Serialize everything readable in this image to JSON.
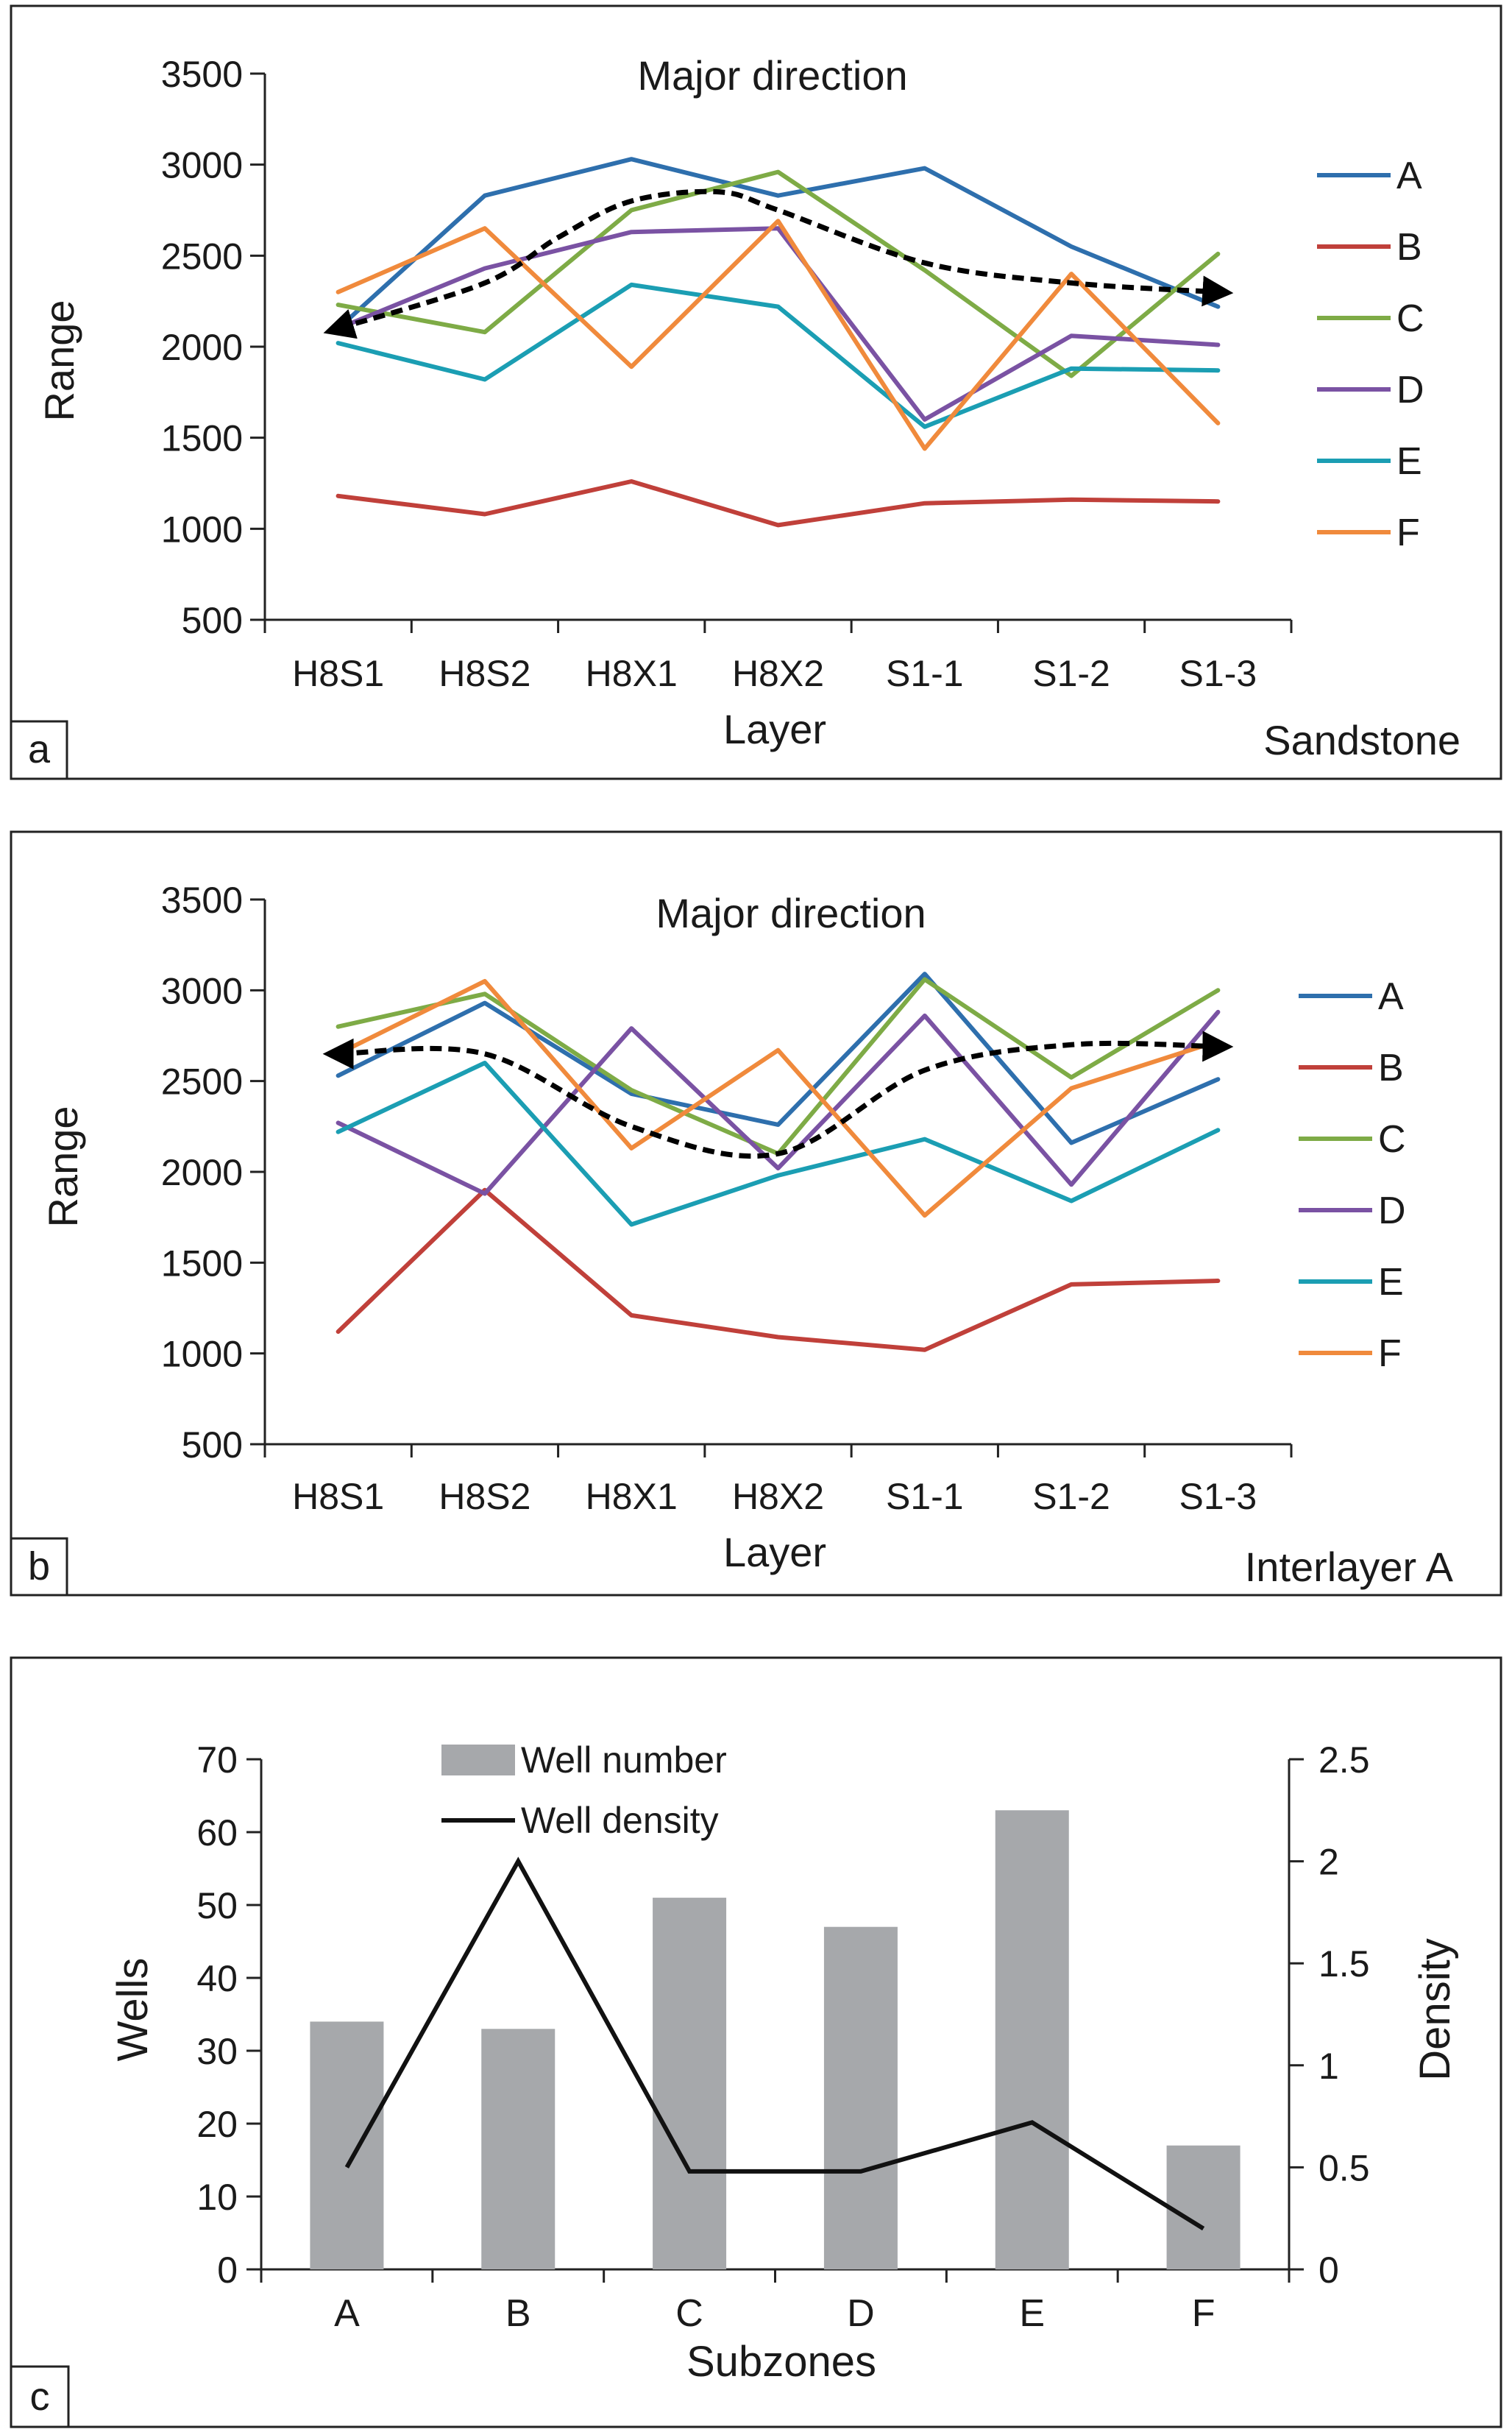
{
  "chart_data": [
    {
      "panel": "a",
      "type": "line",
      "title": "Major direction",
      "xlabel": "Layer",
      "ylabel": "Range",
      "corner_label": "Sandstone",
      "categories": [
        "H8S1",
        "H8S2",
        "H8X1",
        "H8X2",
        "S1-1",
        "S1-2",
        "S1-3"
      ],
      "ylim": [
        500,
        3500
      ],
      "yticks": [
        500,
        1000,
        1500,
        2000,
        2500,
        3000,
        3500
      ],
      "series": [
        {
          "name": "A",
          "color": "#2e6fad",
          "values": [
            2100,
            2830,
            3030,
            2830,
            2980,
            2550,
            2220
          ]
        },
        {
          "name": "B",
          "color": "#c0403a",
          "values": [
            1180,
            1080,
            1260,
            1020,
            1140,
            1160,
            1150
          ]
        },
        {
          "name": "C",
          "color": "#7eab46",
          "values": [
            2230,
            2080,
            2750,
            2960,
            2420,
            1840,
            2510
          ]
        },
        {
          "name": "D",
          "color": "#7a52a3",
          "values": [
            2100,
            2430,
            2630,
            2650,
            1600,
            2060,
            2010
          ]
        },
        {
          "name": "E",
          "color": "#1b9eb3",
          "values": [
            2020,
            1820,
            2340,
            2220,
            1560,
            1880,
            1870
          ]
        },
        {
          "name": "F",
          "color": "#f08a3c",
          "values": [
            2300,
            2650,
            1890,
            2690,
            1440,
            2400,
            1580
          ]
        }
      ],
      "trend": {
        "x": [
          0,
          1,
          1.5,
          2,
          2.6,
          3,
          4,
          5,
          6
        ],
        "y": [
          2100,
          2350,
          2600,
          2800,
          2850,
          2750,
          2460,
          2350,
          2300
        ]
      }
    },
    {
      "panel": "b",
      "type": "line",
      "title": "Major direction",
      "xlabel": "Layer",
      "ylabel": "Range",
      "corner_label": "Interlayer A",
      "categories": [
        "H8S1",
        "H8S2",
        "H8X1",
        "H8X2",
        "S1-1",
        "S1-2",
        "S1-3"
      ],
      "ylim": [
        500,
        3500
      ],
      "yticks": [
        500,
        1000,
        1500,
        2000,
        2500,
        3000,
        3500
      ],
      "series": [
        {
          "name": "A",
          "color": "#2e6fad",
          "values": [
            2530,
            2930,
            2430,
            2260,
            3090,
            2160,
            2510
          ]
        },
        {
          "name": "B",
          "color": "#c0403a",
          "values": [
            1120,
            1900,
            1210,
            1090,
            1020,
            1380,
            1400
          ]
        },
        {
          "name": "C",
          "color": "#7eab46",
          "values": [
            2800,
            2980,
            2450,
            2100,
            3060,
            2520,
            3000
          ]
        },
        {
          "name": "D",
          "color": "#7a52a3",
          "values": [
            2270,
            1880,
            2790,
            2020,
            2860,
            1930,
            2880
          ]
        },
        {
          "name": "E",
          "color": "#1b9eb3",
          "values": [
            2220,
            2600,
            1710,
            1980,
            2180,
            1840,
            2230
          ]
        },
        {
          "name": "F",
          "color": "#f08a3c",
          "values": [
            2650,
            3050,
            2130,
            2670,
            1760,
            2460,
            2720
          ]
        }
      ],
      "trend": {
        "x": [
          0,
          1,
          2,
          3,
          4,
          5,
          6
        ],
        "y": [
          2650,
          2650,
          2250,
          2100,
          2560,
          2700,
          2690
        ]
      }
    },
    {
      "panel": "c",
      "type": "bar",
      "xlabel": "Subzones",
      "ylabel": "Wells",
      "y2label": "Density",
      "categories": [
        "A",
        "B",
        "C",
        "D",
        "E",
        "F"
      ],
      "ylim": [
        0,
        70
      ],
      "yticks": [
        0,
        10,
        20,
        30,
        40,
        50,
        60,
        70
      ],
      "y2lim": [
        0,
        2.5
      ],
      "y2ticks": [
        "0",
        "0.5",
        "1",
        "1.5",
        "2",
        "2.5"
      ],
      "series": [
        {
          "name": "Well number",
          "kind": "bar",
          "axis": "left",
          "color": "#a6a8ab",
          "values": [
            34,
            33,
            51,
            47,
            63,
            17
          ]
        },
        {
          "name": "Well density",
          "kind": "line",
          "axis": "right",
          "color": "#111111",
          "values": [
            0.5,
            2.0,
            0.48,
            0.48,
            0.72,
            0.2
          ]
        }
      ]
    }
  ]
}
